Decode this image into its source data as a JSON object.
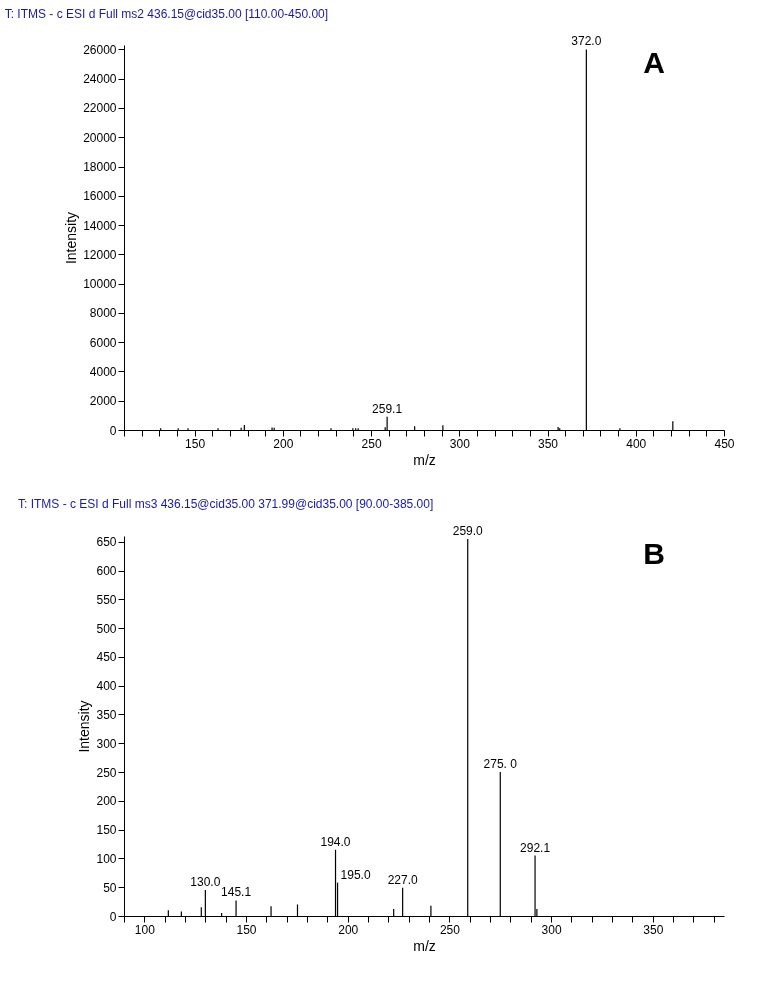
{
  "chart_data": [
    {
      "type": "bar",
      "title": "T: ITMS - c ESI d Full ms2 436.15@cid35.00 [110.00-450.00]",
      "xlabel": "m/z",
      "ylabel": "Intensity",
      "color": "#000000",
      "annotations": [
        "A",
        {
          "text": "259.1",
          "x": 259.1,
          "y": 900
        },
        {
          "text": "372.0",
          "x": 372.0,
          "y": 26000
        }
      ],
      "x": [
        130.8,
        140.7,
        146.3,
        163.3,
        176.4,
        178.2,
        193.9,
        195.1,
        227.3,
        239.7,
        241.3,
        242.7,
        258.0,
        259.1,
        274.7,
        290.7,
        356.0,
        356.9,
        372.0,
        391.0,
        421.0
      ],
      "values": [
        120,
        120,
        120,
        120,
        150,
        350,
        170,
        150,
        120,
        120,
        120,
        120,
        180,
        900,
        260,
        320,
        200,
        120,
        26000,
        120,
        600
      ],
      "xlim": [
        110,
        450
      ],
      "ylim": [
        0,
        26300
      ],
      "xticks": [
        {
          "value": 110,
          "label": null
        },
        {
          "value": 120,
          "label": null
        },
        {
          "value": 130,
          "label": null
        },
        {
          "value": 140,
          "label": null
        },
        150,
        {
          "value": 160,
          "label": null
        },
        {
          "value": 170,
          "label": null
        },
        {
          "value": 180,
          "label": null
        },
        {
          "value": 190,
          "label": null
        },
        200,
        {
          "value": 210,
          "label": null
        },
        {
          "value": 220,
          "label": null
        },
        {
          "value": 230,
          "label": null
        },
        {
          "value": 240,
          "label": null
        },
        250,
        {
          "value": 260,
          "label": null
        },
        {
          "value": 270,
          "label": null
        },
        {
          "value": 280,
          "label": null
        },
        {
          "value": 290,
          "label": null
        },
        300,
        {
          "value": 310,
          "label": null
        },
        {
          "value": 320,
          "label": null
        },
        {
          "value": 330,
          "label": null
        },
        {
          "value": 340,
          "label": null
        },
        350,
        {
          "value": 360,
          "label": null
        },
        {
          "value": 370,
          "label": null
        },
        {
          "value": 380,
          "label": null
        },
        {
          "value": 390,
          "label": null
        },
        400,
        {
          "value": 410,
          "label": null
        },
        {
          "value": 420,
          "label": null
        },
        {
          "value": 430,
          "label": null
        },
        {
          "value": 440,
          "label": null
        },
        450
      ],
      "yticks": [
        0,
        2000,
        4000,
        6000,
        8000,
        10000,
        12000,
        14000,
        16000,
        18000,
        20000,
        22000,
        24000,
        26000
      ]
    },
    {
      "type": "bar",
      "title": "T: ITMS - c ESI d Full ms3 436.15@cid35.00 371.99@cid35.00 [90.00-385.00]",
      "xlabel": "m/z",
      "ylabel": "Intensity",
      "color": "#000000",
      "annotations": [
        "B",
        {
          "text": "130.0",
          "x": 130.0,
          "y": 45
        },
        {
          "text": "145.1",
          "x": 145.1,
          "y": 27
        },
        {
          "text": "194.0",
          "x": 194.0,
          "y": 115
        },
        {
          "text": "195.0",
          "x": 195.0,
          "y": 58
        },
        {
          "text": "227.0",
          "x": 227.0,
          "y": 49
        },
        {
          "text": "259.0",
          "x": 259.0,
          "y": 655
        },
        {
          "text": "275. 0",
          "x": 275.0,
          "y": 250
        },
        {
          "text": "292.1",
          "x": 292.1,
          "y": 105
        }
      ],
      "x": [
        111.8,
        118.2,
        128.0,
        130.0,
        138.0,
        145.1,
        162.3,
        175.3,
        194.0,
        195.0,
        222.6,
        227.0,
        240.9,
        259.0,
        275.0,
        292.1,
        293.0
      ],
      "values": [
        10,
        8,
        15,
        45,
        5,
        27,
        17,
        20,
        115,
        58,
        12,
        49,
        18,
        655,
        250,
        105,
        12
      ],
      "xlim": [
        90,
        385
      ],
      "ylim": [
        0,
        660
      ],
      "xticks": [
        {
          "value": 90,
          "label": null
        },
        100,
        {
          "value": 110,
          "label": null
        },
        {
          "value": 120,
          "label": null
        },
        {
          "value": 130,
          "label": null
        },
        {
          "value": 140,
          "label": null
        },
        150,
        {
          "value": 160,
          "label": null
        },
        {
          "value": 170,
          "label": null
        },
        {
          "value": 180,
          "label": null
        },
        {
          "value": 190,
          "label": null
        },
        200,
        {
          "value": 210,
          "label": null
        },
        {
          "value": 220,
          "label": null
        },
        {
          "value": 230,
          "label": null
        },
        {
          "value": 240,
          "label": null
        },
        250,
        {
          "value": 260,
          "label": null
        },
        {
          "value": 270,
          "label": null
        },
        {
          "value": 280,
          "label": null
        },
        {
          "value": 290,
          "label": null
        },
        300,
        {
          "value": 310,
          "label": null
        },
        {
          "value": 320,
          "label": null
        },
        {
          "value": 330,
          "label": null
        },
        {
          "value": 340,
          "label": null
        },
        350,
        {
          "value": 360,
          "label": null
        },
        {
          "value": 370,
          "label": null
        },
        {
          "value": 380,
          "label": null
        }
      ],
      "yticks": [
        0,
        50,
        100,
        150,
        200,
        250,
        300,
        350,
        400,
        450,
        500,
        550,
        600,
        650
      ]
    }
  ]
}
